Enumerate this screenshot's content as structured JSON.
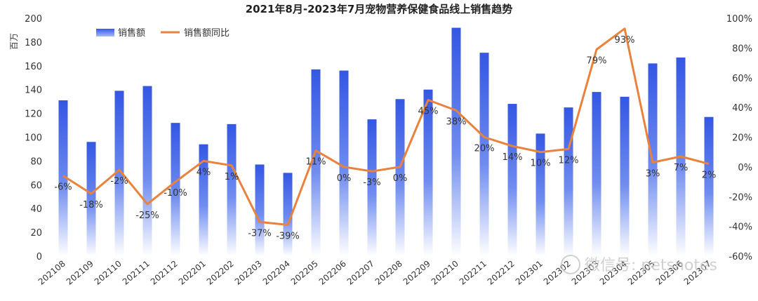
{
  "chart_data": {
    "type": "bar",
    "title": "2021年8月-2023年7月宠物营养保健食品线上销售趋势",
    "ylabel": "百万",
    "ylim": [
      0,
      200
    ],
    "y2lim": [
      -60,
      100
    ],
    "yticks": [
      "0",
      "20",
      "40",
      "60",
      "80",
      "100",
      "120",
      "140",
      "160",
      "180",
      "200"
    ],
    "y2ticks": [
      "-60%",
      "-40%",
      "-20%",
      "0%",
      "20%",
      "40%",
      "60%",
      "80%",
      "100%"
    ],
    "legend_position": "top-left",
    "grid": false,
    "categories": [
      "202108",
      "202109",
      "202110",
      "202111",
      "202112",
      "202201",
      "202202",
      "202203",
      "202204",
      "202205",
      "202206",
      "202207",
      "202208",
      "202209",
      "202210",
      "202211",
      "202212",
      "202301",
      "202302",
      "202303",
      "202304",
      "202305",
      "202306",
      "202307"
    ],
    "series": [
      {
        "name": "销售额",
        "type": "bar",
        "axis": "left",
        "color": "#3b5fe0",
        "values": [
          131,
          96,
          139,
          143,
          112,
          94,
          111,
          77,
          70,
          157,
          156,
          115,
          132,
          140,
          192,
          171,
          128,
          103,
          125,
          138,
          134,
          162,
          167,
          117
        ]
      },
      {
        "name": "销售额同比",
        "type": "line",
        "axis": "right",
        "color": "#e8823c",
        "values": [
          -6,
          -18,
          -2,
          -25,
          -10,
          4,
          1,
          -37,
          -39,
          11,
          0,
          -3,
          0,
          45,
          38,
          20,
          14,
          10,
          12,
          79,
          93,
          3,
          7,
          2
        ],
        "labels": [
          "-6%",
          "-18%",
          "-2%",
          "-25%",
          "-10%",
          "4%",
          "1%",
          "-37%",
          "-39%",
          "11%",
          "0%",
          "-3%",
          "0%",
          "45%",
          "38%",
          "20%",
          "14%",
          "10%",
          "12%",
          "79%",
          "93%",
          "3%",
          "7%",
          "2%"
        ]
      }
    ]
  },
  "watermark": "微信号: petsnotes"
}
